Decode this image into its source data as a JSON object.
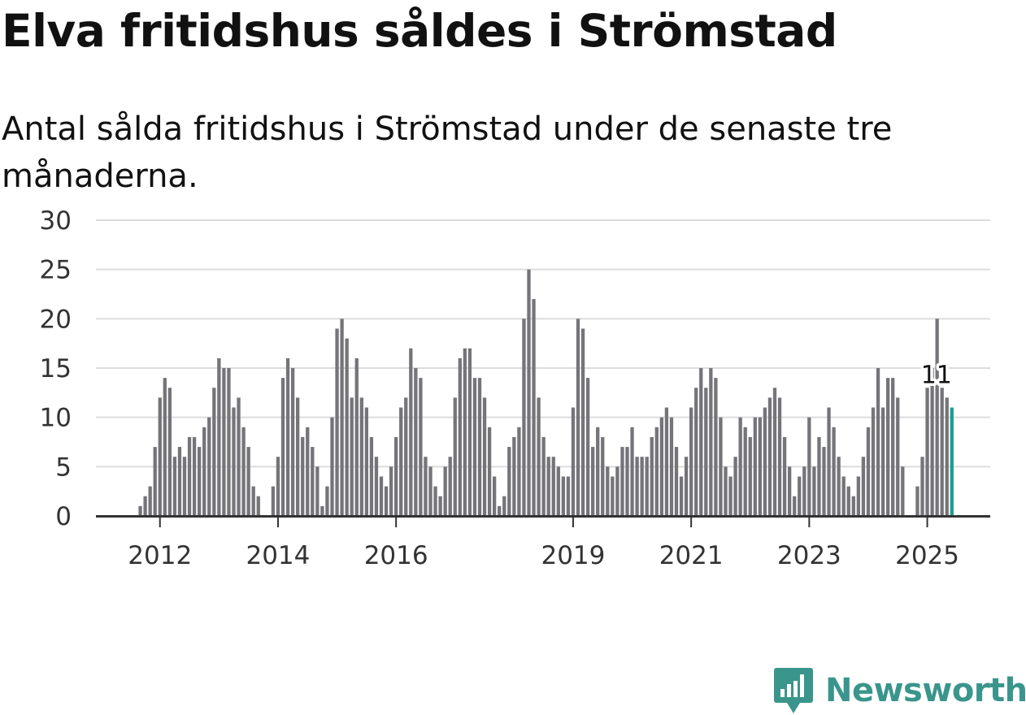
{
  "title": "Elva fritidshus såldes i Strömstad",
  "subtitle": "Antal sålda fritidshus i Strömstad under de senaste tre månaderna.",
  "brand": "Newsworthy",
  "colors": {
    "bar": "#757479",
    "highlight": "#1a9e8f",
    "grid": "#dcdcdc",
    "axis": "#333333",
    "brand": "#3a958c"
  },
  "chart_data": {
    "type": "bar",
    "title": "Elva fritidshus såldes i Strömstad",
    "xlabel": "",
    "ylabel": "",
    "ylim": [
      0,
      30
    ],
    "yticks": [
      0,
      5,
      10,
      15,
      20,
      25,
      30
    ],
    "x_start": "2011-01",
    "series": [
      {
        "name": "Antal sålda fritidshus (tre månader)",
        "values": [
          0,
          0,
          0,
          0,
          0,
          0,
          0,
          0,
          1,
          2,
          3,
          7,
          12,
          14,
          13,
          6,
          7,
          6,
          8,
          8,
          7,
          9,
          10,
          13,
          16,
          15,
          15,
          11,
          12,
          9,
          7,
          3,
          2,
          0,
          0,
          3,
          6,
          14,
          16,
          15,
          12,
          8,
          9,
          7,
          5,
          1,
          3,
          10,
          19,
          20,
          18,
          12,
          16,
          12,
          11,
          8,
          6,
          4,
          3,
          5,
          8,
          11,
          12,
          17,
          15,
          14,
          6,
          5,
          3,
          2,
          5,
          6,
          12,
          16,
          17,
          17,
          14,
          14,
          12,
          9,
          4,
          1,
          2,
          7,
          8,
          9,
          20,
          25,
          22,
          12,
          8,
          6,
          6,
          5,
          4,
          4,
          11,
          20,
          19,
          14,
          7,
          9,
          8,
          5,
          4,
          5,
          7,
          7,
          9,
          6,
          6,
          6,
          8,
          9,
          10,
          11,
          10,
          7,
          4,
          6,
          11,
          13,
          15,
          13,
          15,
          14,
          10,
          5,
          4,
          6,
          10,
          9,
          8,
          10,
          10,
          11,
          12,
          13,
          12,
          8,
          5,
          2,
          4,
          5,
          10,
          5,
          8,
          7,
          11,
          9,
          6,
          4,
          3,
          2,
          4,
          6,
          9,
          11,
          15,
          11,
          14,
          14,
          12,
          5,
          0,
          0,
          3,
          6,
          13,
          15,
          20,
          13,
          12,
          11
        ]
      }
    ],
    "highlight": {
      "label": "11",
      "value": 11
    },
    "x_tick_labels": [
      "2012",
      "2014",
      "2016",
      "2019",
      "2021",
      "2023",
      "2025"
    ],
    "x_tick_dates": [
      "2012-01",
      "2014-01",
      "2016-01",
      "2019-01",
      "2021-01",
      "2023-01",
      "2025-01"
    ]
  }
}
